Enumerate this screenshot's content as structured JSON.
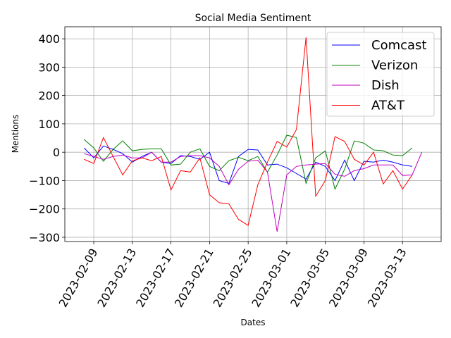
{
  "chart_data": {
    "type": "line",
    "title": "Social Media Sentiment",
    "x_label": "Dates",
    "y_label": "Mentions",
    "x": [
      "2023-02-08",
      "2023-02-09",
      "2023-02-10",
      "2023-02-11",
      "2023-02-12",
      "2023-02-13",
      "2023-02-14",
      "2023-02-15",
      "2023-02-16",
      "2023-02-17",
      "2023-02-18",
      "2023-02-19",
      "2023-02-20",
      "2023-02-21",
      "2023-02-22",
      "2023-02-23",
      "2023-02-24",
      "2023-02-25",
      "2023-02-26",
      "2023-02-27",
      "2023-02-28",
      "2023-03-01",
      "2023-03-02",
      "2023-03-03",
      "2023-03-04",
      "2023-03-05",
      "2023-03-06",
      "2023-03-07",
      "2023-03-08",
      "2023-03-09",
      "2023-03-10",
      "2023-03-11",
      "2023-03-12",
      "2023-03-13",
      "2023-03-14",
      "2023-03-15"
    ],
    "series": [
      {
        "name": "Comcast",
        "color": "#0000ff",
        "values": [
          15,
          -20,
          22,
          10,
          -5,
          -35,
          -15,
          0,
          -35,
          -40,
          -12,
          -15,
          -25,
          0,
          -100,
          -110,
          -15,
          10,
          8,
          -45,
          -42,
          -55,
          -75,
          -95,
          -35,
          -50,
          -100,
          -28,
          -100,
          -32,
          -35,
          -28,
          -35,
          -45,
          -50,
          null
        ]
      },
      {
        "name": "Verizon",
        "color": "#008000",
        "values": [
          45,
          15,
          -32,
          10,
          40,
          5,
          10,
          12,
          12,
          -45,
          -42,
          0,
          12,
          -50,
          -65,
          -30,
          -18,
          -30,
          -15,
          -70,
          -10,
          60,
          52,
          -110,
          -20,
          5,
          -130,
          -60,
          40,
          32,
          8,
          5,
          -10,
          -12,
          15,
          null
        ]
      },
      {
        "name": "Dish",
        "color": "#bf00bf",
        "values": [
          -5,
          -15,
          -25,
          -15,
          -10,
          -20,
          -20,
          0,
          -35,
          -35,
          -15,
          -12,
          -12,
          -20,
          -50,
          -115,
          -60,
          -32,
          -28,
          -70,
          -280,
          -80,
          -50,
          -45,
          -42,
          -40,
          -78,
          -85,
          -65,
          -58,
          -45,
          -45,
          -45,
          -82,
          -80,
          0
        ]
      },
      {
        "name": "AT&T",
        "color": "#ff0000",
        "values": [
          -25,
          -40,
          52,
          -15,
          -80,
          -30,
          -20,
          -30,
          -15,
          -133,
          -65,
          -70,
          -20,
          -150,
          -178,
          -182,
          -237,
          -258,
          -115,
          -35,
          38,
          18,
          80,
          405,
          -155,
          -100,
          55,
          38,
          -25,
          -45,
          0,
          -112,
          -65,
          -130,
          -80,
          null
        ]
      }
    ],
    "xlim": [
      "2023-02-06",
      "2023-03-17"
    ],
    "xticks": [
      "2023-02-09",
      "2023-02-13",
      "2023-02-17",
      "2023-02-21",
      "2023-02-25",
      "2023-03-01",
      "2023-03-05",
      "2023-03-09",
      "2023-03-13"
    ],
    "ylim": [
      -315,
      442.5
    ],
    "yticks": [
      {
        "value": -300,
        "label": "−300"
      },
      {
        "value": -200,
        "label": "−200"
      },
      {
        "value": -100,
        "label": "−100"
      },
      0,
      100,
      200,
      300,
      400
    ],
    "grid": true,
    "legend": "upper right"
  }
}
